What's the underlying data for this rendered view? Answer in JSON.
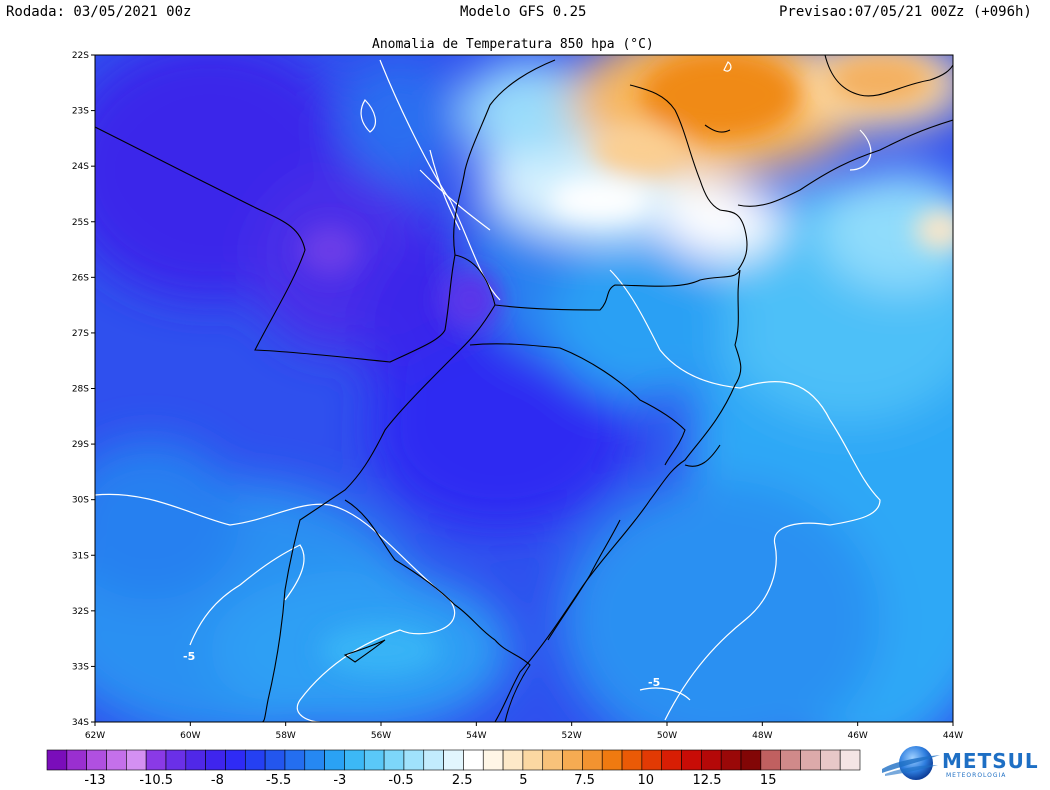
{
  "header": {
    "run": "Rodada: 03/05/2021 00z",
    "model": "Modelo GFS 0.25",
    "forecast": "Previsao:07/05/21 00Zz (+096h)"
  },
  "map": {
    "title": "Anomalia de Temperatura 850 hpa (°C)",
    "variable": "Temperature anomaly at 850 hPa",
    "units": "°C",
    "region": "Southern Brazil, Uruguay, NE Argentina, Paraguay",
    "lat_range": [
      -34,
      -22
    ],
    "lon_range": [
      -62,
      -44
    ],
    "lat_labels": [
      "22S",
      "23S",
      "24S",
      "25S",
      "26S",
      "27S",
      "28S",
      "29S",
      "30S",
      "31S",
      "32S",
      "33S",
      "34S"
    ],
    "lon_labels": [
      "62W",
      "60W",
      "58W",
      "56W",
      "54W",
      "52W",
      "50W",
      "48W",
      "46W",
      "44W"
    ],
    "contour_labels": [
      "-5",
      "-5"
    ]
  },
  "colorbar": {
    "tick_labels": [
      "-13",
      "-10.5",
      "-8",
      "-5.5",
      "-3",
      "-0.5",
      "2.5",
      "5",
      "7.5",
      "10",
      "12.5",
      "15"
    ],
    "colors": [
      "#7a0dba",
      "#9a2fd0",
      "#b050e0",
      "#c470ea",
      "#d490f2",
      "#8a3ae6",
      "#6a30e8",
      "#5028e8",
      "#3f25ee",
      "#2f2bf5",
      "#2540f2",
      "#2356ee",
      "#246ef0",
      "#2688f2",
      "#2aa2f4",
      "#3cb8f6",
      "#5ac8f8",
      "#7dd6fa",
      "#a0e2fc",
      "#c2ecfd",
      "#e2f6fe",
      "#ffffff",
      "#fff6e6",
      "#fde9c8",
      "#fbd8a2",
      "#f8c27a",
      "#f6ab52",
      "#f39330",
      "#f07a10",
      "#ea5a06",
      "#e23a04",
      "#d81e04",
      "#c80c06",
      "#b40808",
      "#9a0808",
      "#820606",
      "#c06060",
      "#d08a8a",
      "#dcaaaa",
      "#e8c8c8",
      "#f4e4e4"
    ]
  },
  "logo": {
    "name": "METSUL",
    "subtitle": "METEOROLOGIA"
  }
}
